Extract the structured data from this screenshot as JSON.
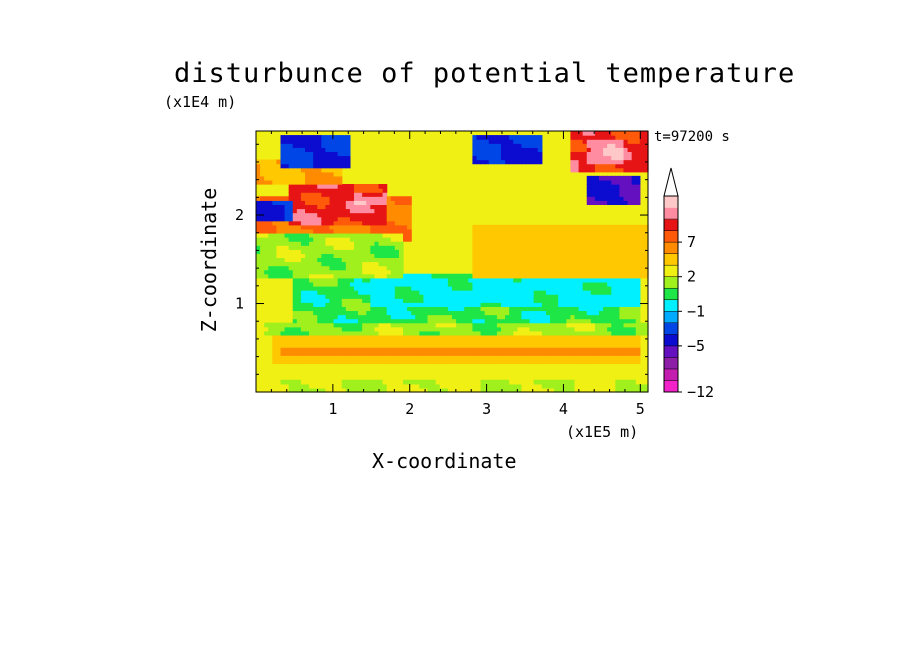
{
  "chart_data": {
    "type": "heatmap",
    "title": "disturbunce of potential temperature",
    "xlabel": "X-coordinate",
    "ylabel": "Z-coordinate",
    "x_unit_label": "(x1E5 m)",
    "y_unit_label": "(x1E4 m)",
    "time_label": "t=97200 s",
    "xlim": [
      0,
      5.1
    ],
    "ylim": [
      0,
      2.95
    ],
    "x_ticks": [
      1,
      2,
      3,
      4,
      5
    ],
    "y_ticks": [
      1,
      2
    ],
    "colorbar": {
      "levels": [
        -12,
        -11,
        -9,
        -7,
        -5,
        -4,
        -3,
        -1,
        0,
        1,
        2,
        4,
        6,
        7,
        8,
        9
      ],
      "tick_labels": [
        "-12",
        "-5",
        "-1",
        "2",
        "7"
      ],
      "tick_values": [
        -12,
        -5,
        -1,
        2,
        7
      ],
      "colors": [
        "#f022c8",
        "#c41eb0",
        "#8c1ea8",
        "#6410c0",
        "#0c0cd0",
        "#0046e6",
        "#00aaff",
        "#00f0ff",
        "#1ee646",
        "#a0f01e",
        "#f0f014",
        "#ffc800",
        "#ff8c00",
        "#ff5a0a",
        "#e61414",
        "#ff8ca0",
        "#ffc8c8"
      ],
      "extend": "max"
    },
    "field_regions": [
      {
        "x": [
          0,
          5.1
        ],
        "z": [
          0,
          0.15
        ],
        "value": 1
      },
      {
        "x": [
          0.2,
          5.0
        ],
        "z": [
          0.3,
          0.65
        ],
        "value": 3
      },
      {
        "x": [
          0.3,
          5.0
        ],
        "z": [
          0.4,
          0.5
        ],
        "value": 5
      },
      {
        "x": [
          0,
          5.1
        ],
        "z": [
          0.65,
          0.8
        ],
        "value": 0.5
      },
      {
        "x": [
          0.5,
          5.0
        ],
        "z": [
          0.8,
          1.35
        ],
        "value": -0.5
      },
      {
        "x": [
          1.5,
          5.0
        ],
        "z": [
          0.95,
          1.3
        ],
        "value": -1.5
      },
      {
        "x": [
          2.8,
          5.1
        ],
        "z": [
          1.3,
          1.9
        ],
        "value": 3
      },
      {
        "x": [
          0,
          1.9
        ],
        "z": [
          1.3,
          1.8
        ],
        "value": 0.5
      },
      {
        "x": [
          0,
          2.0
        ],
        "z": [
          1.7,
          2.2
        ],
        "value": 6
      },
      {
        "x": [
          0.4,
          1.7
        ],
        "z": [
          1.9,
          2.35
        ],
        "value": 7.5
      },
      {
        "x": [
          0,
          1.1
        ],
        "z": [
          2.35,
          2.65
        ],
        "value": 4
      },
      {
        "x": [
          0.3,
          1.2
        ],
        "z": [
          2.55,
          2.9
        ],
        "value": -5
      },
      {
        "x": [
          2.8,
          3.7
        ],
        "z": [
          2.6,
          2.9
        ],
        "value": -5
      },
      {
        "x": [
          4.1,
          5.1
        ],
        "z": [
          2.5,
          2.95
        ],
        "value": 7.5
      },
      {
        "x": [
          4.3,
          5.0
        ],
        "z": [
          2.1,
          2.45
        ],
        "value": -7
      },
      {
        "x": [
          0,
          0.5
        ],
        "z": [
          1.95,
          2.15
        ],
        "value": -5
      },
      {
        "x": [
          1.3,
          1.7
        ],
        "z": [
          2.1,
          2.25
        ],
        "value": 8.5
      },
      {
        "x": [
          4.3,
          4.8
        ],
        "z": [
          2.6,
          2.85
        ],
        "value": 8.5
      }
    ]
  }
}
